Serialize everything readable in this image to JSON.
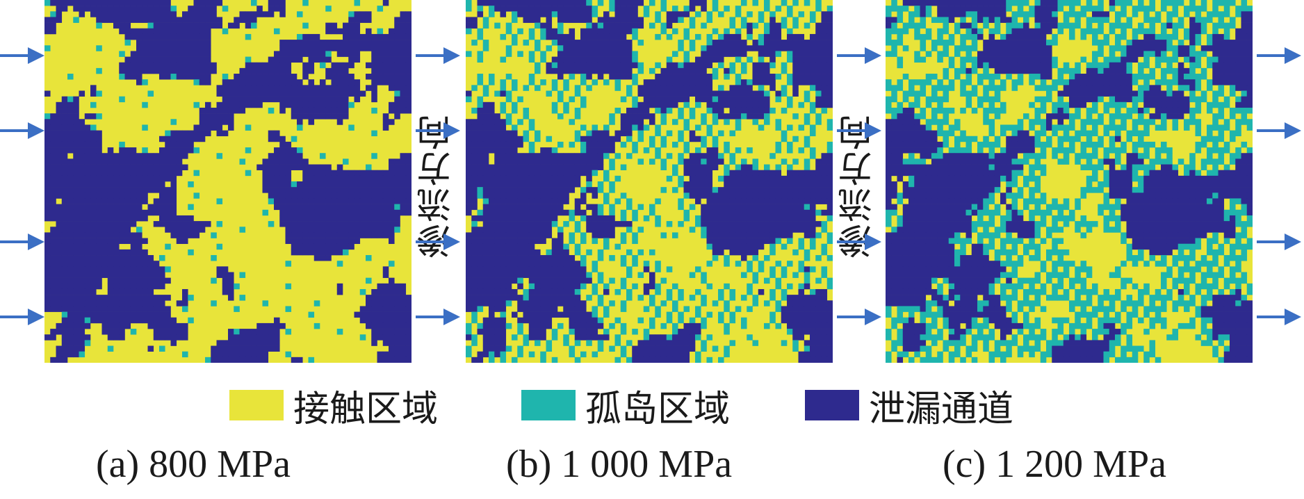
{
  "colors": {
    "contact": "#e8e43a",
    "island": "#1fb5ad",
    "leakage": "#2e2a8e",
    "arrow": "#3b6fc4"
  },
  "flow_direction_label": "渗流方向",
  "legend": {
    "contact": "接触区域",
    "island": "孤岛区域",
    "leakage": "泄漏通道"
  },
  "panels": [
    {
      "caption": "(a) 800 MPa",
      "island_fraction": 0.04
    },
    {
      "caption": "(b) 1 000 MPa",
      "island_fraction": 0.25
    },
    {
      "caption": "(c) 1 200 MPa",
      "island_fraction": 0.4
    }
  ],
  "icons": {
    "flow_arrow": "arrow-right-icon"
  }
}
